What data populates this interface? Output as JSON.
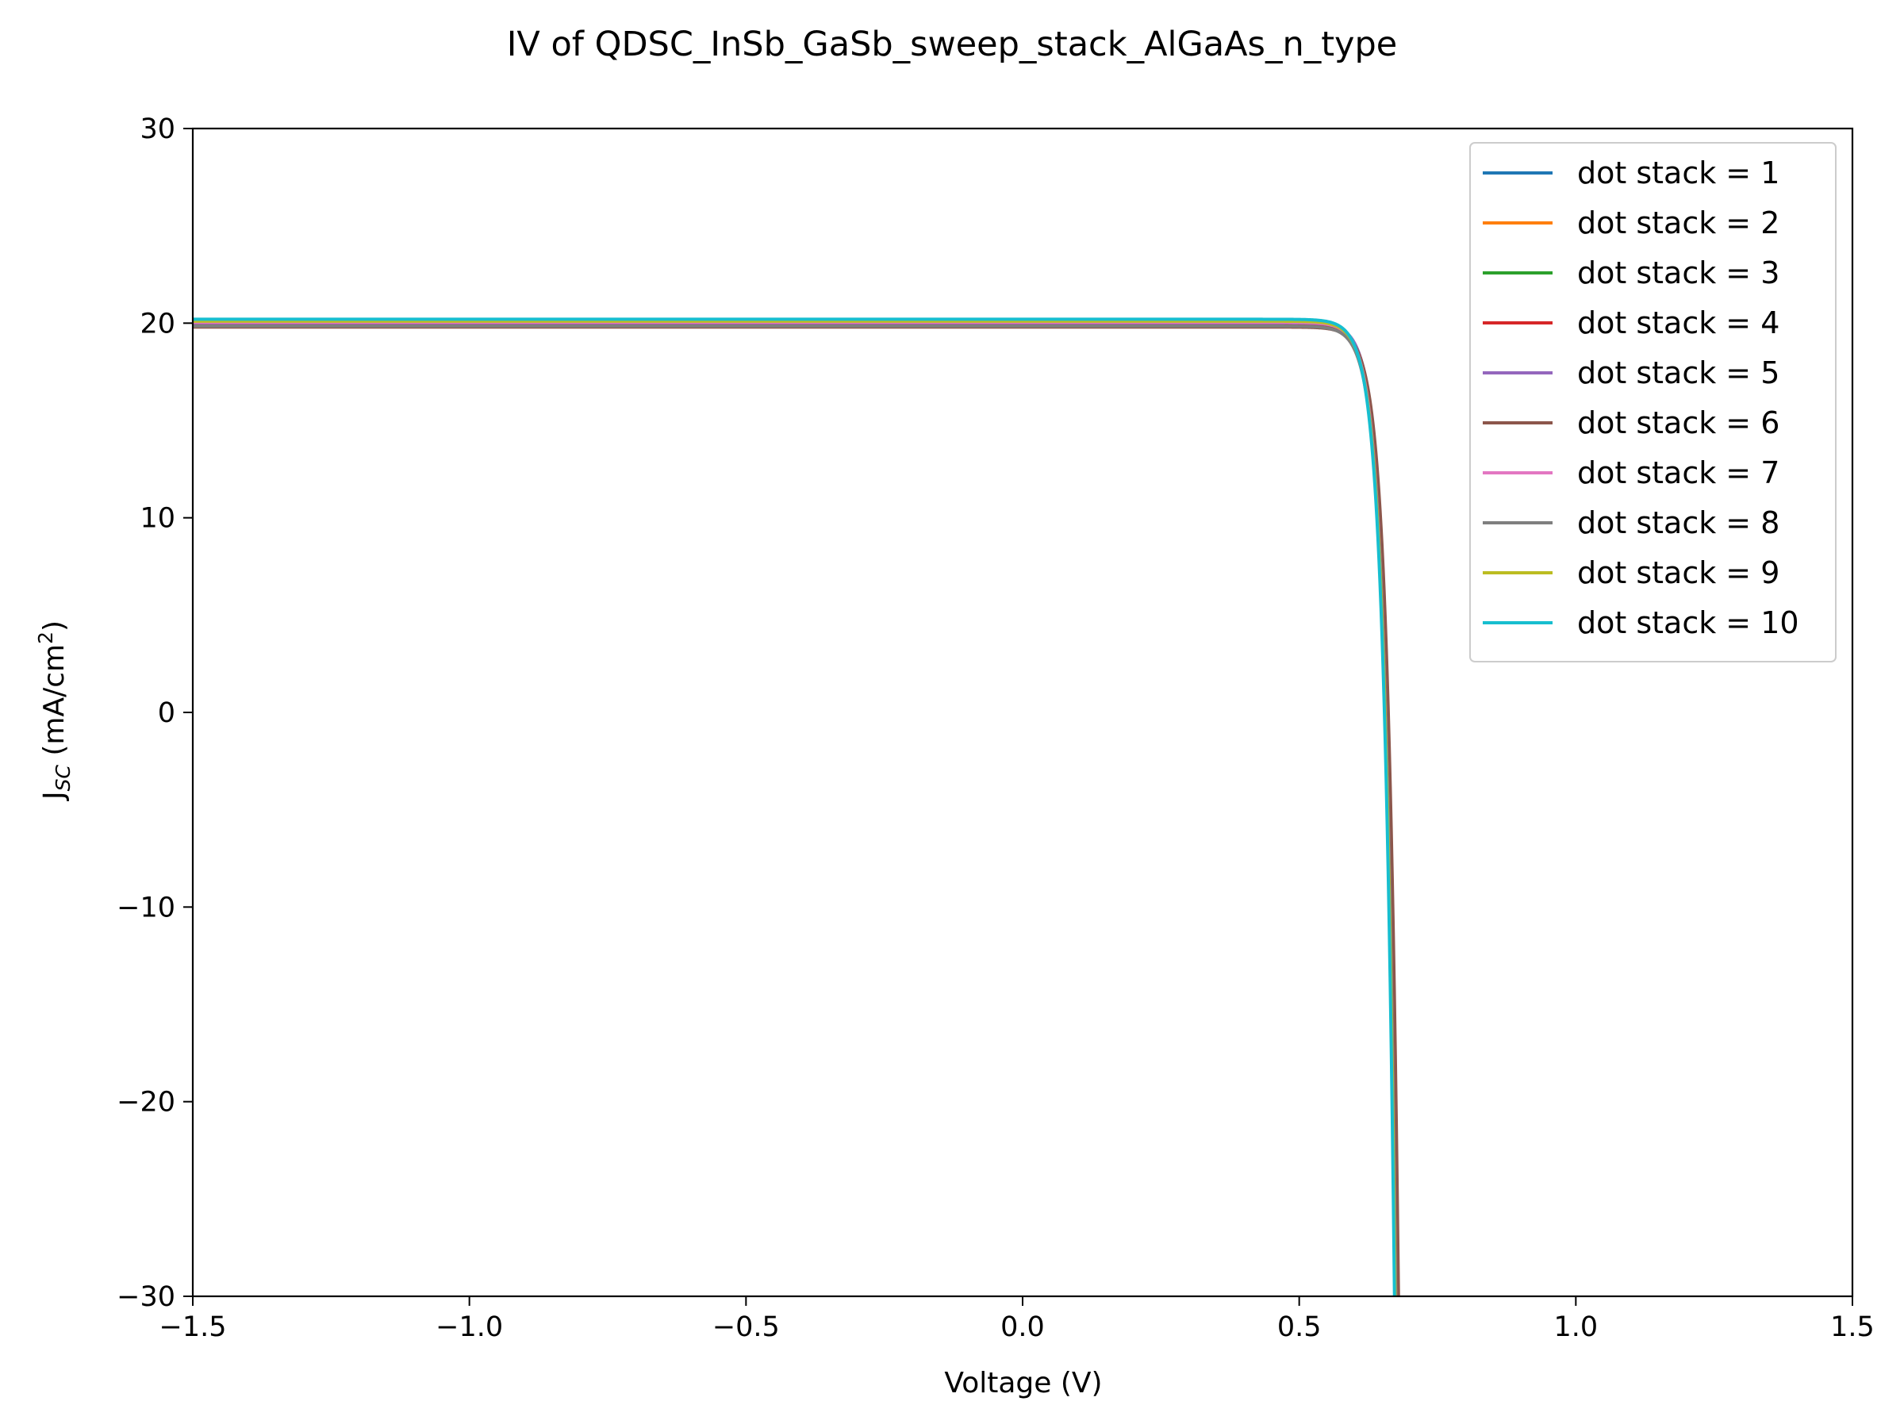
{
  "chart_data": {
    "type": "line",
    "title": "IV of QDSC_InSb_GaSb_sweep_stack_AlGaAs_n_type",
    "xlabel": "Voltage (V)",
    "ylabel_main": "J",
    "ylabel_sub": "SC",
    "ylabel_tail": " (mA/cm",
    "ylabel_sup": "2",
    "ylabel_end": ")",
    "xlim": [
      -1.5,
      1.5
    ],
    "ylim": [
      -30,
      30
    ],
    "x_ticks": [
      -1.5,
      -1.0,
      -0.5,
      0.0,
      0.5,
      1.0,
      1.5
    ],
    "x_tick_labels": [
      "−1.5",
      "−1.0",
      "−0.5",
      "0.0",
      "0.5",
      "1.0",
      "1.5"
    ],
    "y_ticks": [
      -30,
      -20,
      -10,
      0,
      10,
      20,
      30
    ],
    "y_tick_labels": [
      "−30",
      "−20",
      "−10",
      "0",
      "10",
      "20",
      "30"
    ],
    "grid": false,
    "legend_position": "top-right",
    "series": [
      {
        "name": "dot stack = 1",
        "color": "#1f77b4",
        "jsc": 19.9,
        "voc": 0.657
      },
      {
        "name": "dot stack = 2",
        "color": "#ff7f0e",
        "jsc": 19.95,
        "voc": 0.658
      },
      {
        "name": "dot stack = 3",
        "color": "#2ca02c",
        "jsc": 19.98,
        "voc": 0.658
      },
      {
        "name": "dot stack = 4",
        "color": "#d62728",
        "jsc": 20.0,
        "voc": 0.659
      },
      {
        "name": "dot stack = 5",
        "color": "#9467bd",
        "jsc": 20.02,
        "voc": 0.659
      },
      {
        "name": "dot stack = 6",
        "color": "#8c564b",
        "jsc": 19.8,
        "voc": 0.661
      },
      {
        "name": "dot stack = 7",
        "color": "#e377c2",
        "jsc": 20.05,
        "voc": 0.656
      },
      {
        "name": "dot stack = 8",
        "color": "#7f7f7f",
        "jsc": 19.85,
        "voc": 0.656
      },
      {
        "name": "dot stack = 9",
        "color": "#bcbd22",
        "jsc": 20.1,
        "voc": 0.655
      },
      {
        "name": "dot stack = 10",
        "color": "#17becf",
        "jsc": 20.2,
        "voc": 0.654
      }
    ]
  }
}
